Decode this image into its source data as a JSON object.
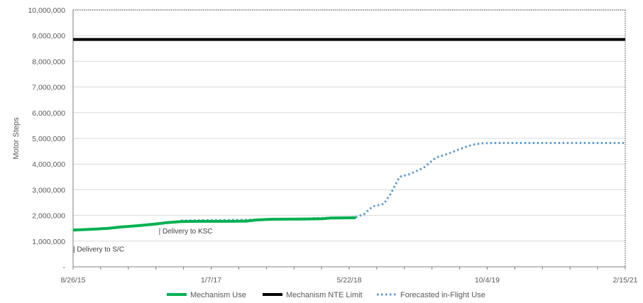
{
  "chart_data": {
    "type": "line",
    "title": "",
    "xlabel": "",
    "ylabel": "Motor Steps",
    "ylim": [
      0,
      10000000
    ],
    "xlim": [
      "2015-08-26",
      "2021-02-15"
    ],
    "x_tick_labels": [
      "8/26/15",
      "1/7/17",
      "5/22/18",
      "10/4/19",
      "2/15/21"
    ],
    "y_tick_labels": [
      "-",
      "1,000,000",
      "2,000,000",
      "3,000,000",
      "4,000,000",
      "5,000,000",
      "6,000,000",
      "7,000,000",
      "8,000,000",
      "9,000,000",
      "10,000,000"
    ],
    "grid": true,
    "legend_position": "bottom",
    "series": [
      {
        "name": "Mechanism Use",
        "color": "#00B050",
        "style": "solid",
        "points": [
          [
            "2015-08-26",
            1430000
          ],
          [
            "2015-11-01",
            1460000
          ],
          [
            "2016-01-01",
            1500000
          ],
          [
            "2016-02-15",
            1550000
          ],
          [
            "2016-04-15",
            1600000
          ],
          [
            "2016-06-15",
            1660000
          ],
          [
            "2016-08-01",
            1720000
          ],
          [
            "2016-09-20",
            1760000
          ],
          [
            "2016-12-01",
            1770000
          ],
          [
            "2017-03-01",
            1770000
          ],
          [
            "2017-05-15",
            1780000
          ],
          [
            "2017-06-15",
            1820000
          ],
          [
            "2017-08-15",
            1850000
          ],
          [
            "2017-12-01",
            1860000
          ],
          [
            "2018-02-15",
            1870000
          ],
          [
            "2018-03-15",
            1900000
          ],
          [
            "2018-06-15",
            1910000
          ]
        ]
      },
      {
        "name": "Mechanism NTE Limit",
        "color": "#000000",
        "style": "solid",
        "points": [
          [
            "2015-08-26",
            8850000
          ],
          [
            "2021-02-15",
            8850000
          ]
        ]
      },
      {
        "name": "Forecasted in-Flight Use",
        "color": "#5B9BD5",
        "style": "dotted",
        "points": [
          [
            "2016-09-20",
            1800000
          ],
          [
            "2017-09-01",
            1840000
          ],
          [
            "2018-02-15",
            1900000
          ],
          [
            "2018-06-15",
            1930000
          ],
          [
            "2018-07-15",
            2050000
          ],
          [
            "2018-08-15",
            2350000
          ],
          [
            "2018-09-25",
            2450000
          ],
          [
            "2018-10-20",
            2850000
          ],
          [
            "2018-11-20",
            3500000
          ],
          [
            "2018-12-25",
            3600000
          ],
          [
            "2019-02-15",
            3850000
          ],
          [
            "2019-04-01",
            4250000
          ],
          [
            "2019-05-15",
            4400000
          ],
          [
            "2019-07-01",
            4600000
          ],
          [
            "2019-08-10",
            4750000
          ],
          [
            "2019-09-15",
            4810000
          ],
          [
            "2019-11-01",
            4820000
          ],
          [
            "2021-02-15",
            4820000
          ]
        ]
      }
    ],
    "annotations": [
      {
        "text": "Delivery to S/C",
        "date": "2015-08-26",
        "value": 600000
      },
      {
        "text": "Delivery to KSC",
        "date": "2016-07-01",
        "value": 1300000
      }
    ]
  },
  "legend": {
    "items": [
      {
        "label": "Mechanism Use",
        "color": "#00B050",
        "style": "solid"
      },
      {
        "label": "Mechanism NTE Limit",
        "color": "#000000",
        "style": "solid"
      },
      {
        "label": "Forecasted in-Flight Use",
        "color": "#5B9BD5",
        "style": "dotted"
      }
    ]
  }
}
